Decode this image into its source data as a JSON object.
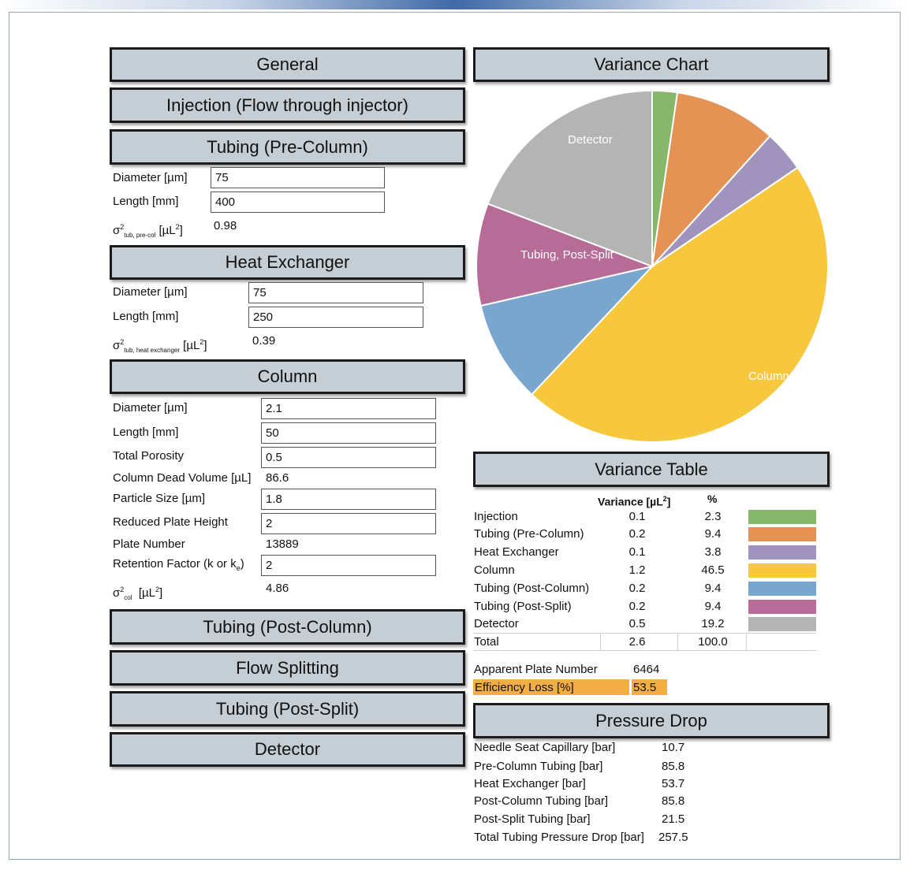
{
  "panels": {
    "general": "General",
    "injection": "Injection (Flow through injector)",
    "tubing_pre": "Tubing (Pre-Column)",
    "heat_exchanger": "Heat Exchanger",
    "column": "Column",
    "tubing_post": "Tubing (Post-Column)",
    "flow_splitting": "Flow Splitting",
    "tubing_post_split": "Tubing (Post-Split)",
    "detector": "Detector",
    "variance_chart": "Variance Chart",
    "variance_table": "Variance Table",
    "pressure_drop": "Pressure Drop"
  },
  "tubing_pre": {
    "diameter_label": "Diameter [µm]",
    "diameter": "75",
    "length_label": "Length [mm]",
    "length": "400",
    "sigma_sub": "tub, pre-col",
    "sigma_unit": "[µL",
    "sigma_value": "0.98"
  },
  "heat_exchanger": {
    "diameter_label": "Diameter [µm]",
    "diameter": "75",
    "length_label": "Length [mm]",
    "length": "250",
    "sigma_sub": "tub, heat exchanger",
    "sigma_unit": "[µL",
    "sigma_value": "0.39"
  },
  "column": {
    "diameter_label": "Diameter [µm]",
    "diameter": "2.1",
    "length_label": "Length [mm]",
    "length": "50",
    "porosity_label": "Total Porosity",
    "porosity": "0.5",
    "dead_volume_label": "Column Dead Volume [µL]",
    "dead_volume": "86.6",
    "particle_label": "Particle Size [µm]",
    "particle": "1.8",
    "rph_label": "Reduced Plate Height",
    "rph": "2",
    "plate_label": "Plate Number",
    "plate": "13889",
    "retention_label_a": "Retention Factor (k or k",
    "retention_sub": "e",
    "retention_label_b": ")",
    "retention": "2",
    "sigma_sub": "col",
    "sigma_unit": "[µL",
    "sigma_value": "4.86"
  },
  "sigma_symbol": "σ",
  "sup2": "2",
  "close_bracket": "]",
  "variance_table": {
    "header_variance": "Variance [µL",
    "header_pct": "%",
    "rows": [
      {
        "name": "Injection",
        "variance": "0.1",
        "pct": "2.3",
        "color": "#86b76a"
      },
      {
        "name": "Tubing (Pre-Column)",
        "variance": "0.2",
        "pct": "9.4",
        "color": "#e59255"
      },
      {
        "name": "Heat Exchanger",
        "variance": "0.1",
        "pct": "3.8",
        "color": "#a093bd"
      },
      {
        "name": "Column",
        "variance": "1.2",
        "pct": "46.5",
        "color": "#f7c83e"
      },
      {
        "name": "Tubing (Post-Column)",
        "variance": "0.2",
        "pct": "9.4",
        "color": "#79a6cf"
      },
      {
        "name": "Tubing (Post-Split)",
        "variance": "0.2",
        "pct": "9.4",
        "color": "#b76b97"
      },
      {
        "name": "Detector",
        "variance": "0.5",
        "pct": "19.2",
        "color": "#b4b4b4"
      }
    ],
    "total_label": "Total",
    "total_variance": "2.6",
    "total_pct": "100.0"
  },
  "efficiency": {
    "apparent_label": "Apparent Plate Number",
    "apparent_value": "6464",
    "loss_label": "Efficiency Loss [%]",
    "loss_value": "53.5",
    "highlight_color": "#f2ae45"
  },
  "pressure": {
    "rows": [
      {
        "label": "Needle Seat Capillary [bar]",
        "value": "10.7"
      },
      {
        "label": "Pre-Column Tubing [bar]",
        "value": "85.8"
      },
      {
        "label": "Heat Exchanger [bar]",
        "value": "53.7"
      },
      {
        "label": "Post-Column Tubing [bar]",
        "value": "85.8"
      },
      {
        "label": "Post-Split Tubing [bar]",
        "value": "21.5"
      },
      {
        "label": "Total Tubing Pressure Drop [bar]",
        "value": "257.5"
      }
    ]
  },
  "chart_data": {
    "type": "pie",
    "title": "Variance Chart",
    "labels": [
      "Injection",
      "Tubing (Pre-Column)",
      "Heat Exchanger",
      "Column",
      "Tubing (Post-Column)",
      "Tubing (Post-Split)",
      "Detector"
    ],
    "values": [
      2.3,
      9.4,
      3.8,
      46.5,
      9.4,
      9.4,
      19.2
    ],
    "colors": [
      "#86b76a",
      "#e59255",
      "#a093bd",
      "#f7c83e",
      "#79a6cf",
      "#b76b97",
      "#b4b4b4"
    ],
    "slice_labels": [
      "",
      "",
      "",
      "Column",
      "",
      "Tubing, Post-Split",
      "Detector"
    ],
    "start": "12 o'clock",
    "direction": "clockwise"
  }
}
